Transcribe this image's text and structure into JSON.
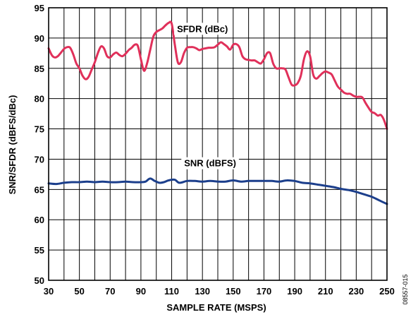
{
  "figure_id": "08557-015",
  "chart_data": {
    "type": "line",
    "title": "",
    "xlabel": "SAMPLE RATE (MSPS)",
    "ylabel": "SNR/SFDR (dBFS/dBc)",
    "xlim": [
      30,
      250
    ],
    "ylim": [
      50,
      95
    ],
    "xticks": [
      30,
      50,
      70,
      90,
      110,
      130,
      150,
      170,
      190,
      210,
      230,
      250
    ],
    "yticks": [
      50,
      55,
      60,
      65,
      70,
      75,
      80,
      85,
      90,
      95
    ],
    "xgrid_step": 10,
    "grid": true,
    "legend": "none (inline series labels)",
    "series": [
      {
        "name": "SFDR (dBc)",
        "color": "#e0305a",
        "label_x": 130,
        "label_y": 91,
        "x": [
          30,
          32,
          34,
          36,
          38,
          40,
          42,
          44,
          46,
          48,
          50,
          52,
          54,
          56,
          58,
          60,
          62,
          64,
          66,
          68,
          70,
          72,
          74,
          76,
          78,
          80,
          82,
          84,
          86,
          88,
          90,
          92,
          94,
          96,
          98,
          100,
          102,
          104,
          106,
          108,
          110,
          112,
          114,
          116,
          118,
          120,
          122,
          124,
          126,
          128,
          130,
          132,
          134,
          136,
          138,
          140,
          142,
          144,
          146,
          148,
          150,
          152,
          154,
          156,
          158,
          160,
          162,
          164,
          166,
          168,
          170,
          172,
          174,
          176,
          178,
          180,
          182,
          184,
          186,
          188,
          190,
          192,
          194,
          196,
          198,
          200,
          202,
          204,
          206,
          208,
          210,
          212,
          214,
          216,
          218,
          220,
          222,
          224,
          226,
          228,
          230,
          232,
          234,
          236,
          238,
          240,
          242,
          244,
          246,
          248,
          250
        ],
        "values": [
          88.3,
          87.2,
          86.8,
          87.0,
          87.6,
          88.2,
          88.5,
          88.4,
          87.3,
          85.8,
          85.0,
          83.8,
          83.2,
          83.6,
          84.8,
          86.0,
          87.5,
          88.6,
          88.3,
          87.0,
          86.8,
          87.3,
          87.6,
          87.2,
          87.0,
          87.4,
          88.0,
          88.4,
          88.9,
          88.7,
          86.5,
          84.6,
          85.8,
          88.0,
          90.2,
          91.0,
          91.3,
          91.6,
          92.1,
          92.5,
          92.4,
          89.0,
          86.0,
          86.0,
          87.5,
          88.4,
          88.5,
          88.5,
          88.3,
          88.0,
          88.2,
          88.3,
          88.4,
          88.4,
          88.5,
          88.9,
          89.3,
          89.0,
          88.6,
          88.1,
          88.9,
          89.0,
          88.5,
          87.0,
          86.5,
          86.4,
          86.3,
          86.3,
          86.0,
          85.8,
          86.5,
          87.5,
          87.5,
          85.8,
          85.0,
          85.0,
          85.0,
          84.8,
          83.5,
          82.3,
          82.2,
          82.6,
          83.8,
          86.5,
          87.8,
          87.0,
          84.0,
          83.3,
          83.7,
          84.2,
          84.5,
          84.3,
          84.0,
          83.0,
          82.0,
          81.5,
          81.0,
          80.8,
          80.8,
          80.5,
          80.3,
          80.3,
          80.2,
          79.3,
          78.5,
          77.8,
          77.6,
          77.2,
          77.3,
          76.5,
          75.0
        ]
      },
      {
        "name": "SNR (dBFS)",
        "color": "#1c3f8c",
        "label_x": 135,
        "label_y": 68.8,
        "x": [
          30,
          35,
          40,
          45,
          50,
          55,
          60,
          65,
          70,
          75,
          80,
          85,
          90,
          93,
          96,
          99,
          102,
          105,
          108,
          112,
          115,
          120,
          125,
          130,
          135,
          140,
          145,
          150,
          155,
          160,
          165,
          170,
          175,
          180,
          185,
          190,
          195,
          200,
          205,
          210,
          215,
          220,
          225,
          230,
          235,
          240,
          245,
          250
        ],
        "values": [
          66.0,
          65.9,
          66.1,
          66.2,
          66.2,
          66.3,
          66.2,
          66.3,
          66.2,
          66.2,
          66.3,
          66.2,
          66.2,
          66.3,
          66.8,
          66.4,
          66.1,
          66.2,
          66.5,
          66.6,
          66.1,
          66.4,
          66.4,
          66.3,
          66.4,
          66.3,
          66.3,
          66.5,
          66.3,
          66.4,
          66.4,
          66.4,
          66.4,
          66.3,
          66.5,
          66.4,
          66.1,
          66.0,
          65.8,
          65.6,
          65.4,
          65.1,
          64.9,
          64.6,
          64.2,
          63.8,
          63.2,
          62.6
        ]
      }
    ]
  }
}
